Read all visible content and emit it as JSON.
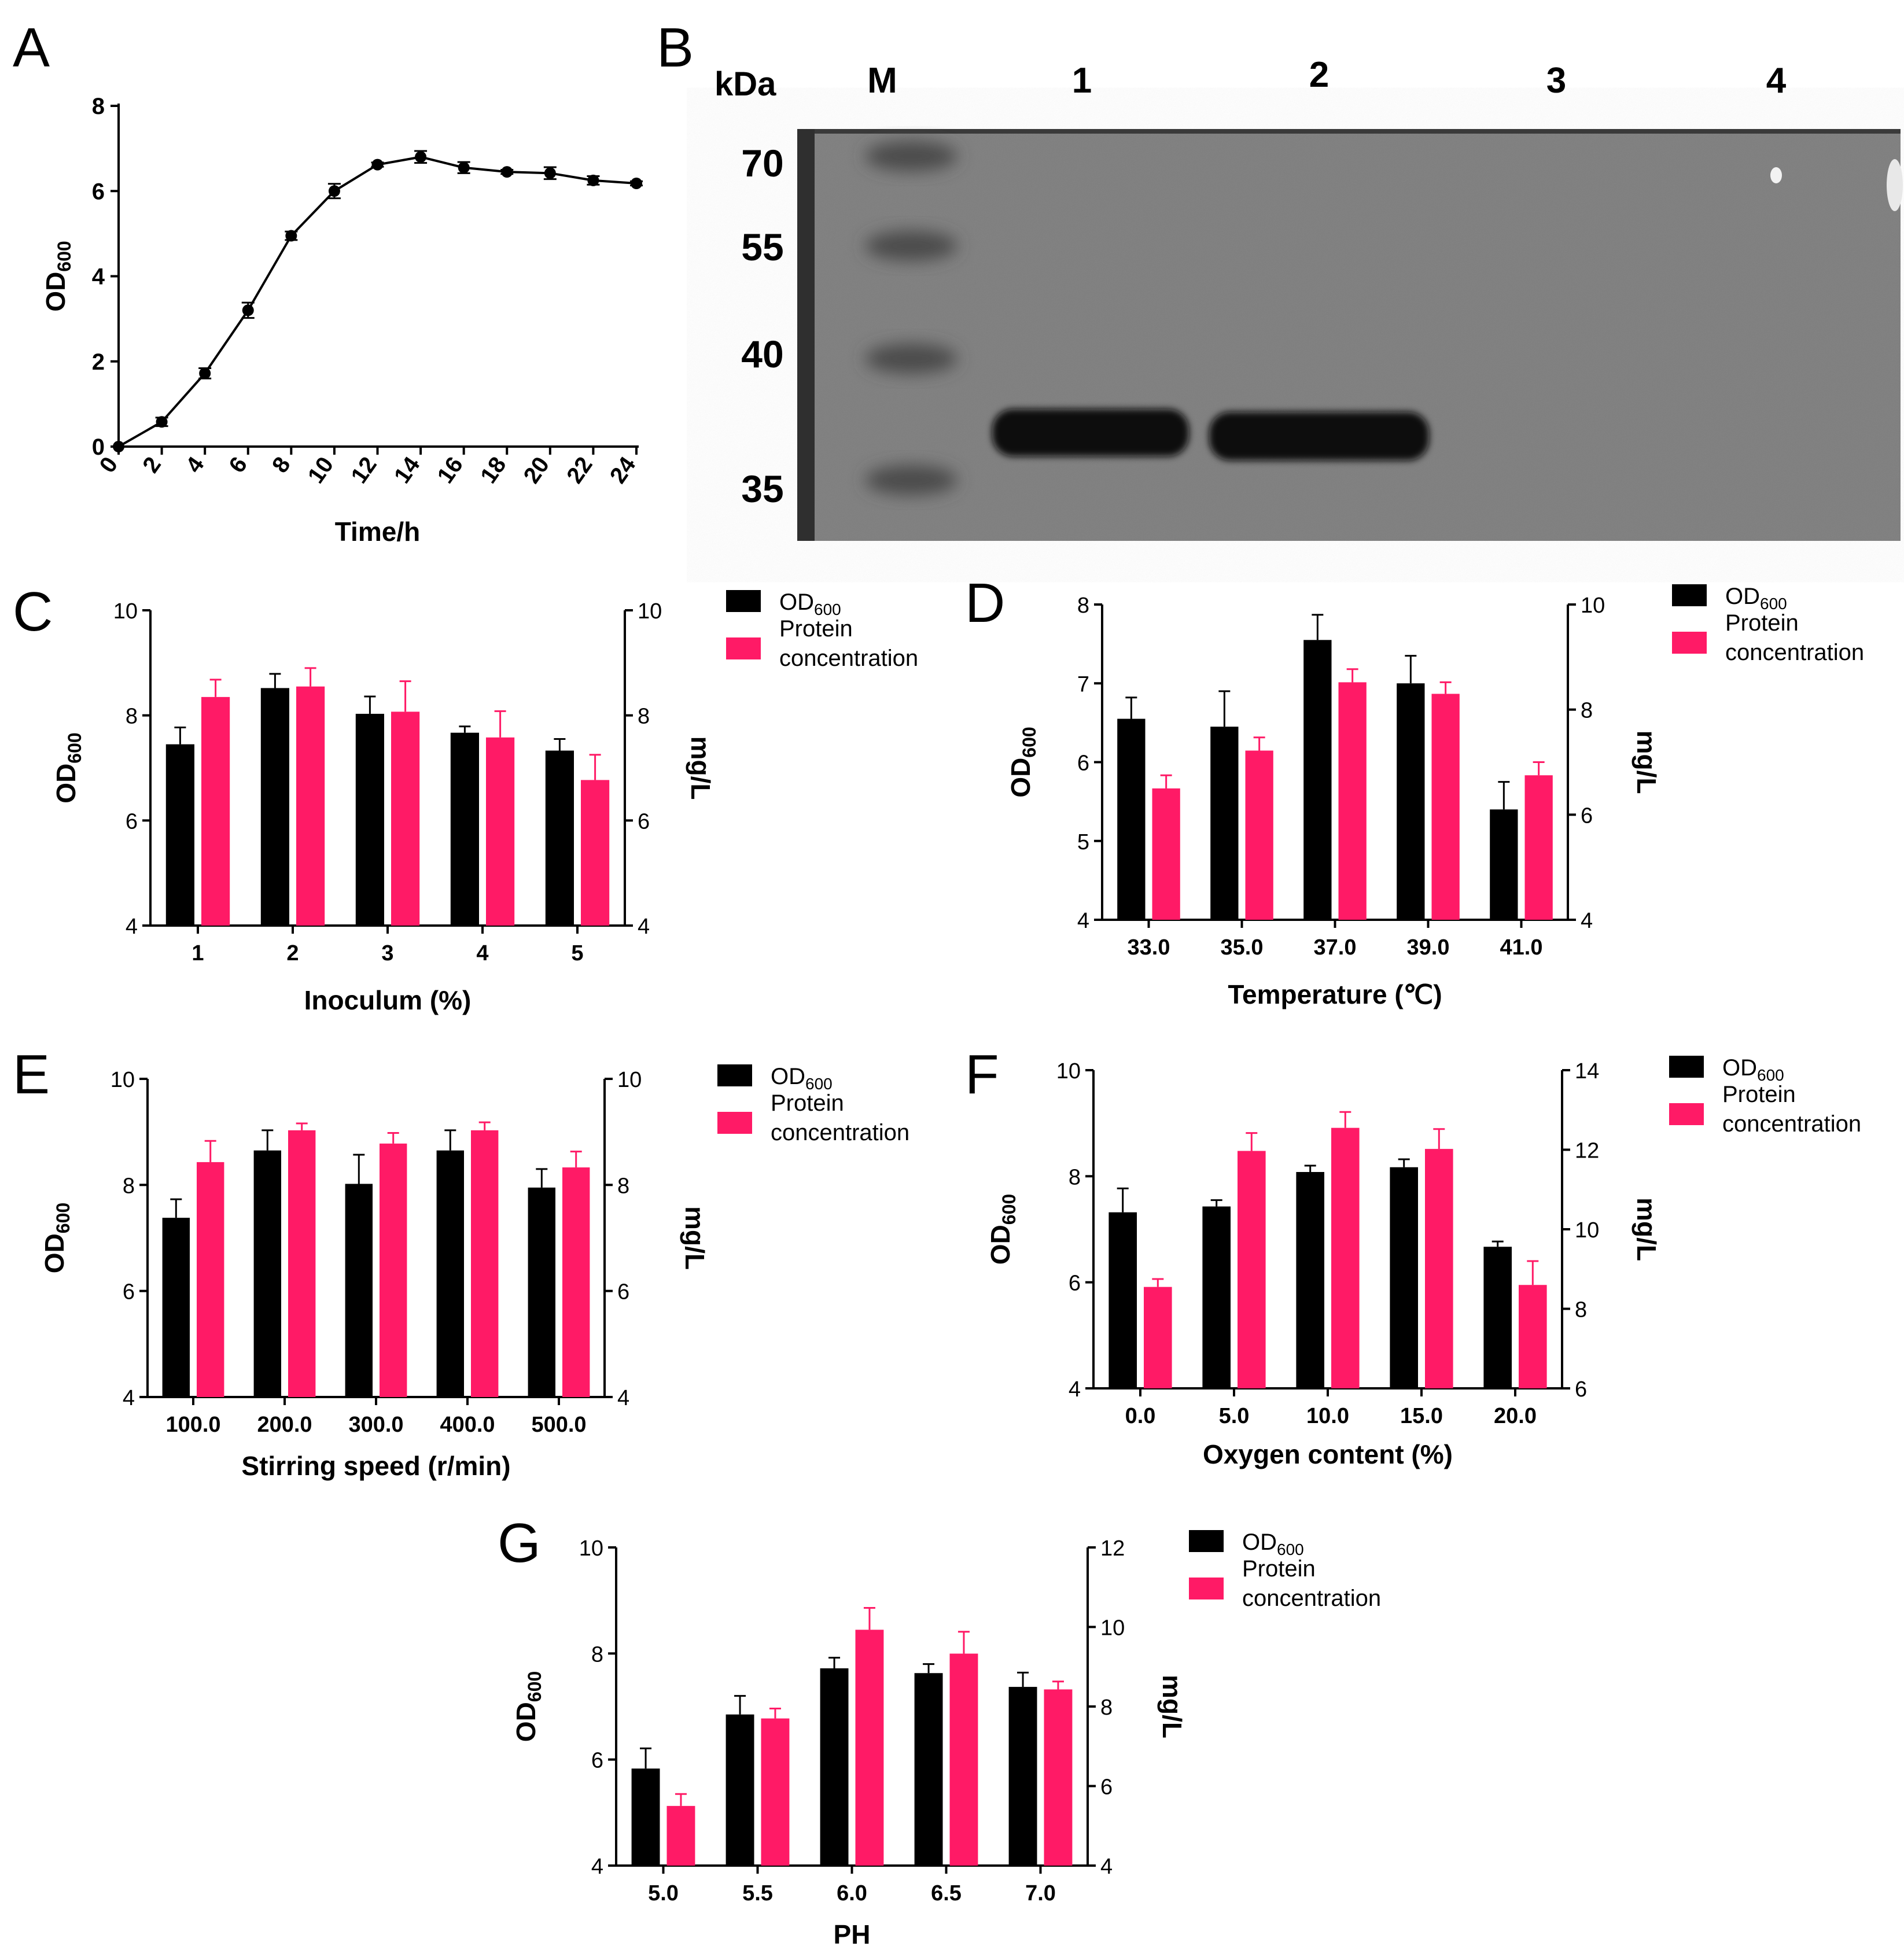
{
  "colors": {
    "od": "#000000",
    "protein": "#ff1a66"
  },
  "chart_data": [
    {
      "panel": "A",
      "type": "line",
      "xlabel": "Time/h",
      "ylabel": "OD600",
      "ylabel_main": "OD",
      "ylabel_sub": "600",
      "xlim": [
        0,
        24
      ],
      "ylim": [
        0,
        8
      ],
      "xticks": [
        "0",
        "2",
        "4",
        "6",
        "8",
        "10",
        "12",
        "14",
        "16",
        "18",
        "20",
        "22",
        "24"
      ],
      "yticks": [
        "0",
        "2",
        "4",
        "6",
        "8"
      ],
      "series": [
        {
          "x": [
            0,
            2,
            4,
            6,
            8,
            10,
            12,
            14,
            16,
            18,
            20,
            22,
            24
          ],
          "y": [
            0,
            0.58,
            1.72,
            3.2,
            4.95,
            6.0,
            6.62,
            6.8,
            6.55,
            6.45,
            6.42,
            6.25,
            6.18
          ],
          "err": [
            0,
            0.1,
            0.12,
            0.18,
            0.1,
            0.17,
            0.05,
            0.14,
            0.13,
            0.05,
            0.14,
            0.1,
            0.05
          ]
        }
      ]
    },
    {
      "panel": "C",
      "type": "bar",
      "xlabel": "Inoculum (%)",
      "ylabel": "OD600",
      "ylabel_main": "OD",
      "ylabel_sub": "600",
      "y2label": "mg/L",
      "categories": [
        "1",
        "2",
        "3",
        "4",
        "5"
      ],
      "ylim": [
        4,
        10
      ],
      "y2lim": [
        4,
        10
      ],
      "yticks": [
        "4",
        "6",
        "8",
        "10"
      ],
      "y2ticks": [
        "4",
        "6",
        "8",
        "10"
      ],
      "series": [
        {
          "name": "OD600",
          "name_main": "OD",
          "name_sub": "600",
          "values": [
            7.45,
            8.52,
            8.03,
            7.67,
            7.33
          ],
          "err": [
            0.32,
            0.27,
            0.33,
            0.12,
            0.22
          ]
        },
        {
          "name": "Protein concentration",
          "name_line1": "Protein",
          "name_line2": "concentration",
          "values": [
            8.35,
            8.55,
            8.07,
            7.58,
            6.77
          ],
          "err": [
            0.33,
            0.35,
            0.58,
            0.5,
            0.48
          ]
        }
      ]
    },
    {
      "panel": "D",
      "type": "bar",
      "xlabel": "Temperature (℃)",
      "ylabel": "OD600",
      "ylabel_main": "OD",
      "ylabel_sub": "600",
      "y2label": "mg/L",
      "categories": [
        "33.0",
        "35.0",
        "37.0",
        "39.0",
        "41.0"
      ],
      "ylim": [
        4,
        8
      ],
      "y2lim": [
        4,
        10
      ],
      "yticks": [
        "4",
        "5",
        "6",
        "7",
        "8"
      ],
      "y2ticks": [
        "4",
        "6",
        "8",
        "10"
      ],
      "series": [
        {
          "name": "OD600",
          "name_main": "OD",
          "name_sub": "600",
          "values": [
            6.55,
            6.45,
            7.55,
            7.0,
            5.4
          ],
          "err": [
            0.27,
            0.45,
            0.32,
            0.35,
            0.35
          ]
        },
        {
          "name": "Protein concentration",
          "name_line1": "Protein",
          "name_line2": "concentration",
          "values": [
            6.5,
            7.22,
            8.52,
            8.3,
            6.75
          ],
          "err": [
            0.25,
            0.25,
            0.25,
            0.22,
            0.25
          ]
        }
      ]
    },
    {
      "panel": "E",
      "type": "bar",
      "xlabel": "Stirring speed (r/min)",
      "ylabel": "OD600",
      "ylabel_main": "OD",
      "ylabel_sub": "600",
      "y2label": "mg/L",
      "categories": [
        "100.0",
        "200.0",
        "300.0",
        "400.0",
        "500.0"
      ],
      "ylim": [
        4,
        10
      ],
      "y2lim": [
        4,
        10
      ],
      "yticks": [
        "4",
        "6",
        "8",
        "10"
      ],
      "y2ticks": [
        "4",
        "6",
        "8",
        "10"
      ],
      "series": [
        {
          "name": "OD600",
          "name_main": "OD",
          "name_sub": "600",
          "values": [
            7.38,
            8.65,
            8.02,
            8.65,
            7.95
          ],
          "err": [
            0.35,
            0.38,
            0.55,
            0.38,
            0.35
          ]
        },
        {
          "name": "Protein concentration",
          "name_line1": "Protein",
          "name_line2": "concentration",
          "values": [
            8.43,
            9.03,
            8.78,
            9.03,
            8.33
          ],
          "err": [
            0.4,
            0.13,
            0.2,
            0.15,
            0.3
          ]
        }
      ]
    },
    {
      "panel": "F",
      "type": "bar",
      "xlabel": "Oxygen content (%)",
      "ylabel": "OD600",
      "ylabel_main": "OD",
      "ylabel_sub": "600",
      "y2label": "mg/L",
      "categories": [
        "0.0",
        "5.0",
        "10.0",
        "15.0",
        "20.0"
      ],
      "ylim": [
        4,
        10
      ],
      "y2lim": [
        6,
        14
      ],
      "yticks": [
        "4",
        "6",
        "8",
        "10"
      ],
      "y2ticks": [
        "6",
        "8",
        "10",
        "12",
        "14"
      ],
      "series": [
        {
          "name": "OD600",
          "name_main": "OD",
          "name_sub": "600",
          "values": [
            7.32,
            7.43,
            8.08,
            8.17,
            6.67
          ],
          "err": [
            0.45,
            0.12,
            0.12,
            0.15,
            0.1
          ]
        },
        {
          "name": "Protein concentration",
          "name_line1": "Protein",
          "name_line2": "concentration",
          "values": [
            8.55,
            11.97,
            12.55,
            12.02,
            8.6
          ],
          "err": [
            0.2,
            0.45,
            0.4,
            0.5,
            0.6
          ]
        }
      ]
    },
    {
      "panel": "G",
      "type": "bar",
      "xlabel": "PH",
      "ylabel": "OD600",
      "ylabel_main": "OD",
      "ylabel_sub": "600",
      "y2label": "mg/L",
      "categories": [
        "5.0",
        "5.5",
        "6.0",
        "6.5",
        "7.0"
      ],
      "ylim": [
        4,
        10
      ],
      "y2lim": [
        4,
        12
      ],
      "yticks": [
        "4",
        "6",
        "8",
        "10"
      ],
      "y2ticks": [
        "4",
        "6",
        "8",
        "10",
        "12"
      ],
      "series": [
        {
          "name": "OD600",
          "name_main": "OD",
          "name_sub": "600",
          "values": [
            5.83,
            6.85,
            7.72,
            7.63,
            7.37
          ],
          "err": [
            0.38,
            0.35,
            0.2,
            0.17,
            0.27
          ]
        },
        {
          "name": "Protein concentration",
          "name_line1": "Protein",
          "name_line2": "concentration",
          "values": [
            5.5,
            7.7,
            9.93,
            9.33,
            8.43
          ],
          "err": [
            0.3,
            0.25,
            0.55,
            0.55,
            0.2
          ]
        }
      ]
    }
  ],
  "blot": {
    "panel": "B",
    "unit_label": "kDa",
    "lane_labels": [
      "M",
      "1",
      "2",
      "3",
      "4"
    ],
    "marker_labels": [
      "70",
      "55",
      "40",
      "35"
    ],
    "marker_kda": [
      70,
      55,
      40,
      35
    ],
    "band_lanes": [
      "1",
      "2"
    ]
  }
}
